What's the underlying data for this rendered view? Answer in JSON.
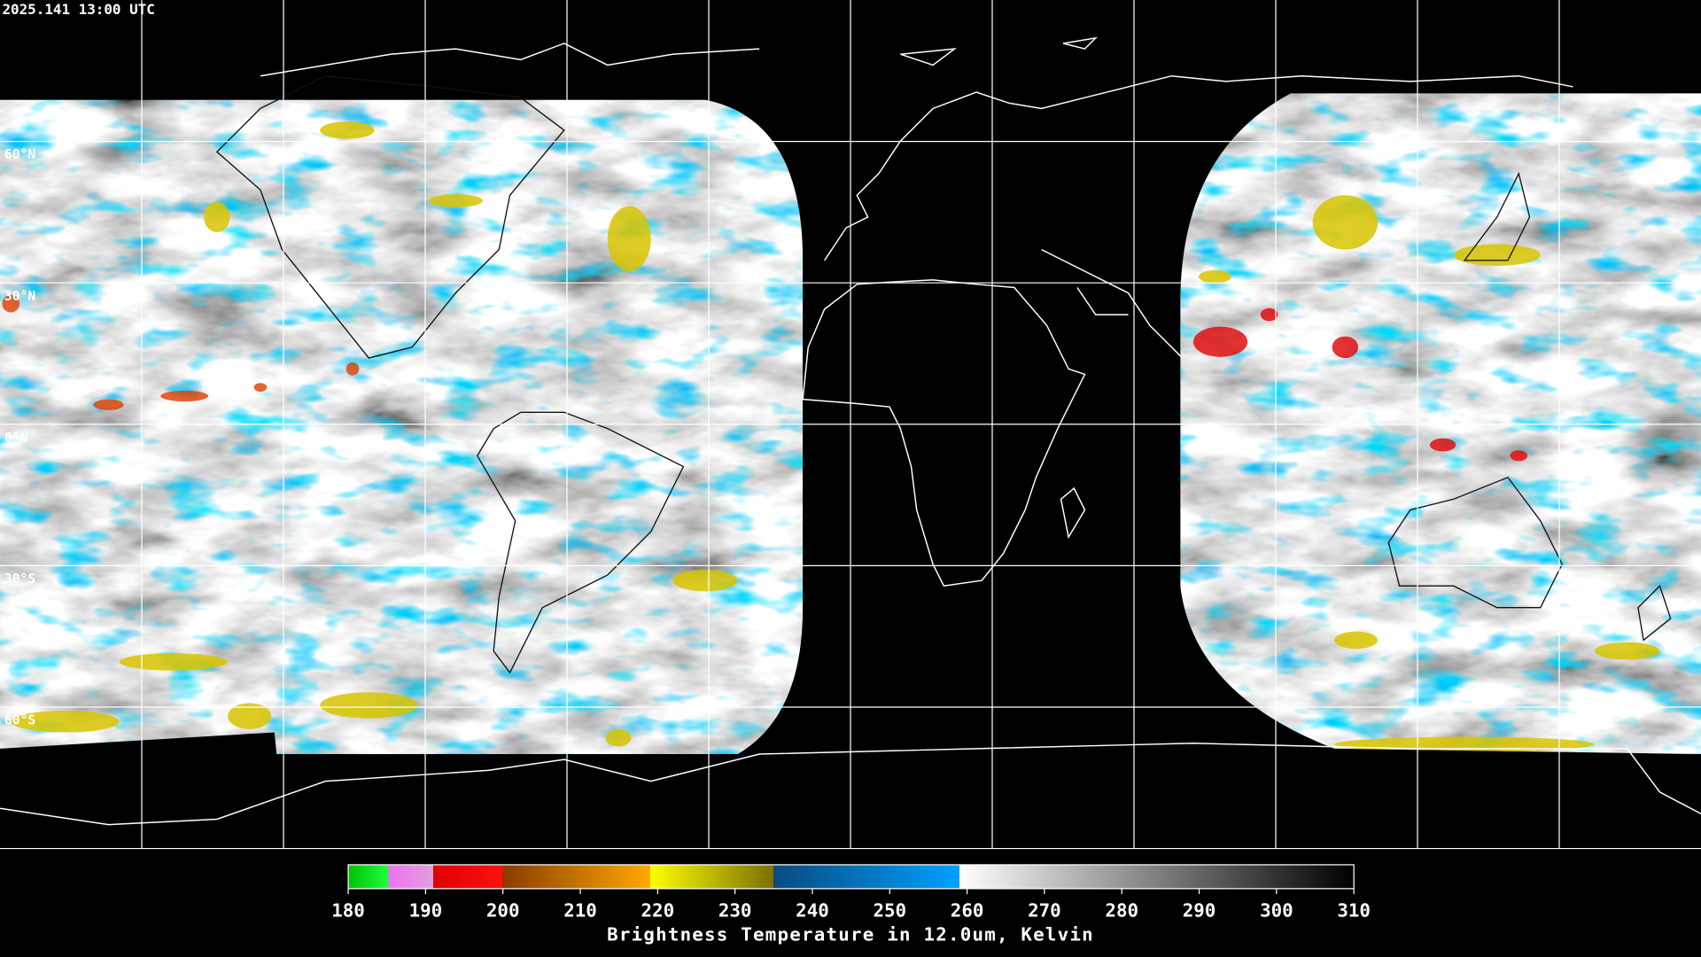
{
  "timestamp": "2025.141 13:00 UTC",
  "lat_labels": [
    "60°N",
    "30°N",
    "0°N",
    "30°S",
    "60°S"
  ],
  "colorbar": {
    "title": "Brightness Temperature in 12.0um, Kelvin",
    "range": [
      180,
      310
    ],
    "ticks": [
      180,
      190,
      200,
      210,
      220,
      230,
      240,
      250,
      260,
      270,
      280,
      290,
      300,
      310
    ],
    "segments": [
      {
        "range": [
          180,
          185.2
        ],
        "colors": [
          "#00c000",
          "#20ff40"
        ]
      },
      {
        "range": [
          185.2,
          191
        ],
        "colors": [
          "#f070f0",
          "#e0a0e0"
        ]
      },
      {
        "range": [
          191,
          200
        ],
        "colors": [
          "#e00000",
          "#ff1010"
        ]
      },
      {
        "range": [
          200,
          219
        ],
        "colors": [
          "#8a3c00",
          "#ffa800"
        ]
      },
      {
        "range": [
          219,
          235
        ],
        "colors": [
          "#ffff00",
          "#7a7000"
        ]
      },
      {
        "range": [
          235,
          259
        ],
        "colors": [
          "#0a4a80",
          "#00a0ff"
        ]
      },
      {
        "range": [
          259,
          310
        ],
        "colors": [
          "#ffffff",
          "#000000"
        ]
      }
    ]
  }
}
